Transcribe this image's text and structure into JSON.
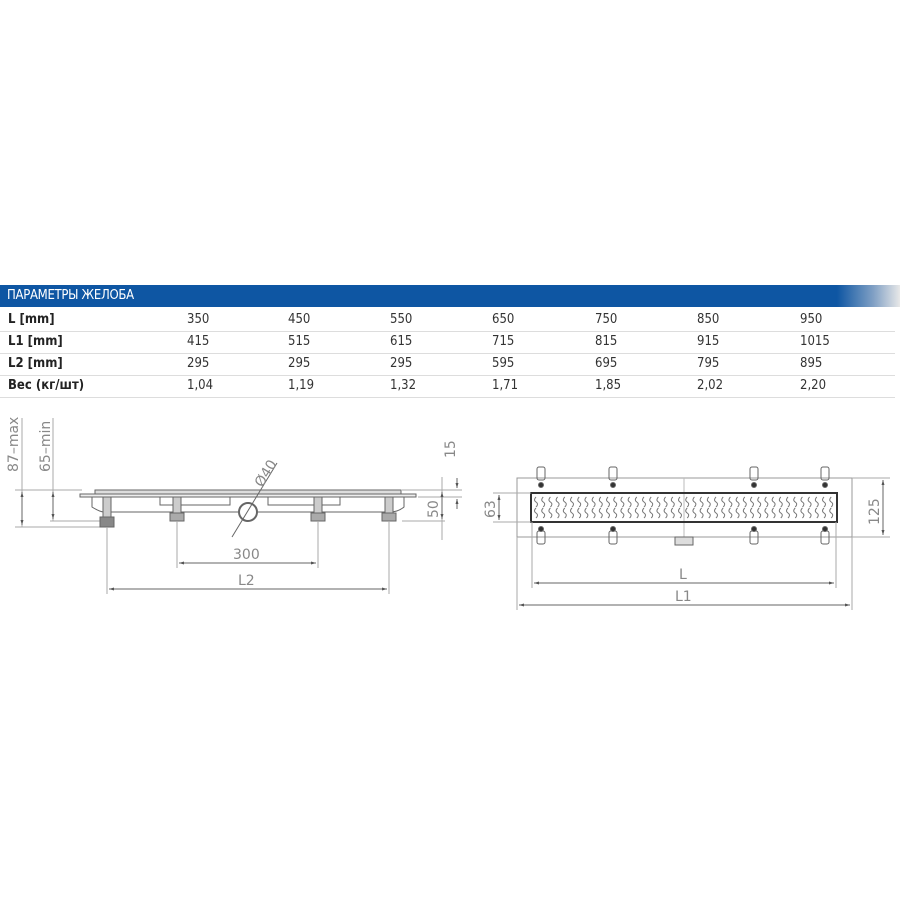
{
  "table": {
    "title": "ПАРАМЕТРЫ ЖЕЛОБА",
    "rows": [
      {
        "label": "L [mm]",
        "values": [
          "350",
          "450",
          "550",
          "650",
          "750",
          "850",
          "950"
        ]
      },
      {
        "label": "L1 [mm]",
        "values": [
          "415",
          "515",
          "615",
          "715",
          "815",
          "915",
          "1015"
        ]
      },
      {
        "label": "L2 [mm]",
        "values": [
          "295",
          "295",
          "295",
          "595",
          "695",
          "795",
          "895"
        ]
      },
      {
        "label": "Вес (кг/шт)",
        "values": [
          "1,04",
          "1,19",
          "1,32",
          "1,71",
          "1,85",
          "2,02",
          "2,20"
        ]
      }
    ],
    "header_color": "#0e56a3"
  },
  "side_view": {
    "dim_max": "87–max",
    "dim_min": "65–min",
    "dim_pipe": "Ø40",
    "dim_top": "15",
    "dim_height": "50",
    "dim_feet": "300",
    "dim_l2": "L2"
  },
  "top_view": {
    "dim_grate_width": "63",
    "dim_width": "125",
    "dim_l": "L",
    "dim_l1": "L1"
  }
}
